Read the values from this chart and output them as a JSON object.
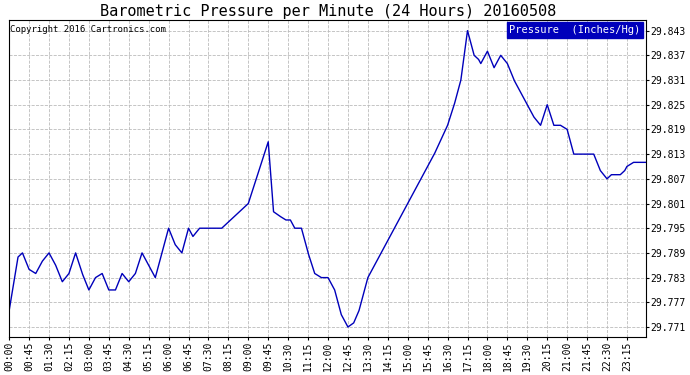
{
  "title": "Barometric Pressure per Minute (24 Hours) 20160508",
  "copyright": "Copyright 2016 Cartronics.com",
  "legend_label": "Pressure  (Inches/Hg)",
  "ylabel_ticks": [
    29.771,
    29.777,
    29.783,
    29.789,
    29.795,
    29.801,
    29.807,
    29.813,
    29.819,
    29.825,
    29.831,
    29.837,
    29.843
  ],
  "ylim": [
    29.7685,
    29.8455
  ],
  "x_tick_labels": [
    "00:00",
    "00:45",
    "01:30",
    "02:15",
    "03:00",
    "03:45",
    "04:30",
    "05:15",
    "06:00",
    "06:45",
    "07:30",
    "08:15",
    "09:00",
    "09:45",
    "10:30",
    "11:15",
    "12:00",
    "12:45",
    "13:30",
    "14:15",
    "15:00",
    "15:45",
    "16:30",
    "17:15",
    "18:00",
    "18:45",
    "19:30",
    "20:15",
    "21:00",
    "21:45",
    "22:30",
    "23:15"
  ],
  "line_color": "#0000bb",
  "background_color": "#ffffff",
  "grid_color": "#bbbbbb",
  "title_color": "#000000",
  "copyright_color": "#000000",
  "legend_bg": "#0000bb",
  "legend_text_color": "#ffffff",
  "title_fontsize": 11,
  "tick_fontsize": 7,
  "copyright_fontsize": 6.5,
  "line_width": 1.0
}
